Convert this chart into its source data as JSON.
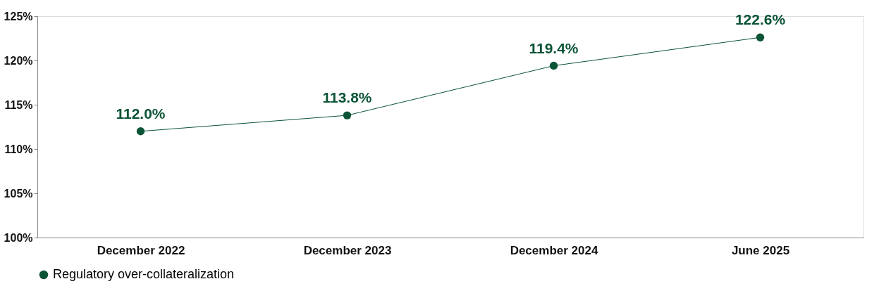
{
  "chart_data": {
    "type": "line",
    "categories": [
      "December 2022",
      "December 2023",
      "December 2024",
      "June 2025"
    ],
    "series": [
      {
        "name": "Regulatory over-collateralization",
        "color": "#0b5436",
        "values": [
          112.0,
          113.8,
          119.4,
          122.6
        ],
        "value_labels": [
          "112.0%",
          "113.8%",
          "119.4%",
          "122.6%"
        ]
      }
    ],
    "ylim": [
      100,
      125
    ],
    "yticks": [
      {
        "value": 100,
        "label": "100%"
      },
      {
        "value": 105,
        "label": "105%"
      },
      {
        "value": 110,
        "label": "110%"
      },
      {
        "value": 115,
        "label": "115%"
      },
      {
        "value": 120,
        "label": "120%"
      },
      {
        "value": 125,
        "label": "125%"
      }
    ],
    "grid": false,
    "legend": "bottom",
    "marker": "circle",
    "line_style": "solid"
  }
}
